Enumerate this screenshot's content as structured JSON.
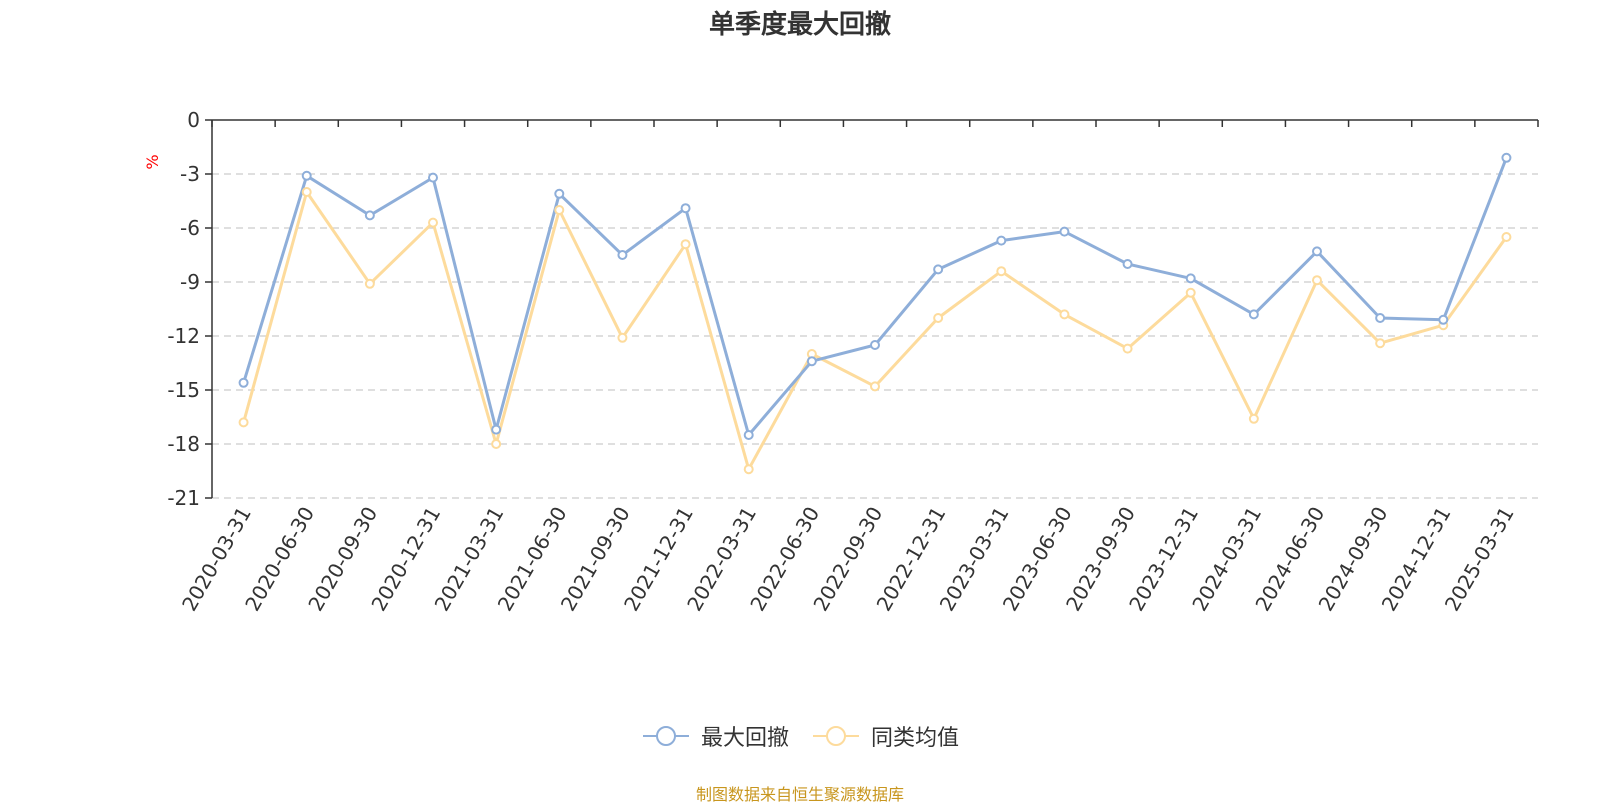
{
  "chart_data": {
    "type": "line",
    "title": "单季度最大回撤",
    "ylabel": "%",
    "ylim": [
      -21,
      0
    ],
    "yticks": [
      "0",
      "-3",
      "-6",
      "-9",
      "-12",
      "-15",
      "-18",
      "-21"
    ],
    "categories": [
      "2020-03-31",
      "2020-06-30",
      "2020-09-30",
      "2020-12-31",
      "2021-03-31",
      "2021-06-30",
      "2021-09-30",
      "2021-12-31",
      "2022-03-31",
      "2022-06-30",
      "2022-09-30",
      "2022-12-31",
      "2023-03-31",
      "2023-06-30",
      "2023-09-30",
      "2023-12-31",
      "2024-03-31",
      "2024-06-30",
      "2024-09-30",
      "2024-12-31",
      "2025-03-31"
    ],
    "series": [
      {
        "name": "最大回撤",
        "color": "#8eaed9",
        "values": [
          -14.6,
          -3.1,
          -5.3,
          -3.2,
          -17.2,
          -4.1,
          -7.5,
          -4.9,
          -17.5,
          -13.4,
          -12.5,
          -8.3,
          -6.7,
          -6.2,
          -8.0,
          -8.8,
          -10.8,
          -7.3,
          -11.0,
          -11.1,
          -2.1
        ]
      },
      {
        "name": "同类均值",
        "color": "#fddb9c",
        "values": [
          -16.8,
          -4.0,
          -9.1,
          -5.7,
          -18.0,
          -5.0,
          -12.1,
          -6.9,
          -19.4,
          -13.0,
          -14.8,
          -11.0,
          -8.4,
          -10.8,
          -12.7,
          -9.6,
          -16.6,
          -8.9,
          -12.4,
          -11.4,
          -6.5
        ]
      }
    ],
    "grid": true,
    "legend_position": "bottom"
  },
  "source_text": "制图数据来自恒生聚源数据库",
  "colors": {
    "title": "#333333",
    "axis": "#333333",
    "gridline": "#cccccc",
    "unit_label": "#ff0000",
    "source_text": "#c8961e"
  }
}
